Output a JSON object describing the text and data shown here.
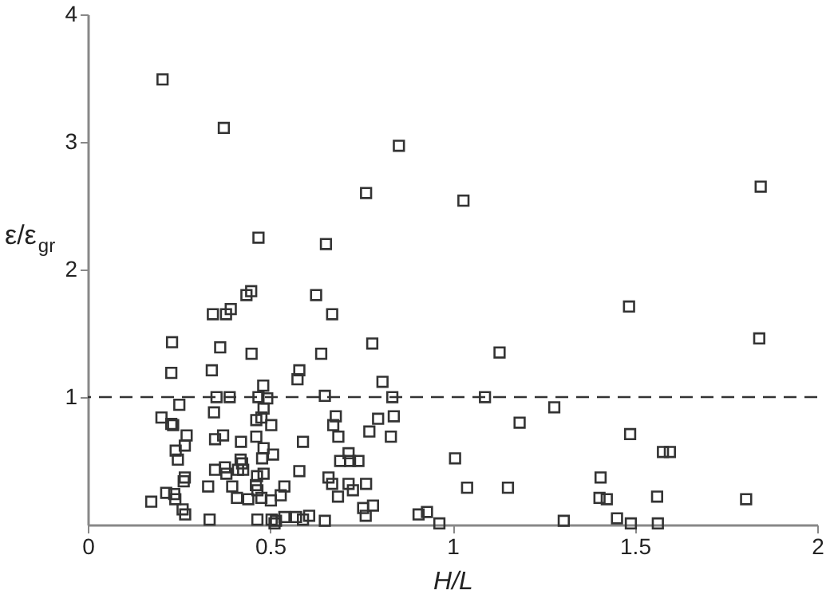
{
  "chart_data": {
    "type": "scatter",
    "xlabel": "H/L",
    "ylabel": "ε/ε$_{gr}$",
    "xlim": [
      0,
      2
    ],
    "xticks": [
      0,
      0.5,
      1,
      1.5,
      2
    ],
    "ylim": [
      0,
      4
    ],
    "yticks": [
      1,
      2,
      3,
      4
    ],
    "grid": false,
    "marker": "square",
    "ref_lines": [
      {
        "axis": "y",
        "value": 1,
        "line_style": "dashed",
        "color": "#333333"
      }
    ],
    "series": [
      {
        "color": "#333333",
        "x": [
          0.205,
          0.373,
          0.468,
          0.653,
          0.763,
          0.853,
          1.03,
          1.845,
          1.484,
          1.841,
          1.129,
          1.089,
          1.279,
          1.184,
          1.487,
          1.007,
          1.577,
          1.596,
          1.04,
          1.152,
          1.406,
          1.403,
          1.423,
          1.561,
          1.805,
          1.305,
          1.451,
          1.489,
          1.563,
          0.964,
          0.448,
          0.435,
          0.392,
          0.379,
          0.343,
          0.626,
          0.67,
          0.231,
          0.363,
          0.449,
          0.64,
          0.78,
          0.229,
          0.34,
          0.58,
          0.575,
          0.481,
          0.808,
          0.353,
          0.389,
          0.468,
          0.492,
          0.65,
          0.835,
          0.251,
          0.482,
          0.346,
          0.202,
          0.229,
          0.234,
          0.476,
          0.462,
          0.503,
          0.68,
          0.673,
          0.687,
          0.796,
          0.839,
          0.772,
          0.831,
          0.271,
          0.349,
          0.371,
          0.462,
          0.42,
          0.266,
          0.241,
          0.247,
          0.482,
          0.508,
          0.478,
          0.59,
          0.715,
          0.692,
          0.719,
          0.742,
          0.419,
          0.423,
          0.349,
          0.376,
          0.38,
          0.412,
          0.426,
          0.482,
          0.464,
          0.58,
          0.66,
          0.266,
          0.263,
          0.33,
          0.396,
          0.461,
          0.465,
          0.67,
          0.715,
          0.763,
          0.727,
          0.539,
          0.529,
          0.174,
          0.215,
          0.237,
          0.24,
          0.409,
          0.44,
          0.476,
          0.502,
          0.686,
          0.755,
          0.782,
          0.762,
          0.26,
          0.267,
          0.334,
          0.465,
          0.504,
          0.516,
          0.512,
          0.539,
          0.571,
          0.59,
          0.607,
          0.65,
          0.907,
          0.93
        ],
        "values": [
          3.49,
          3.11,
          2.25,
          2.2,
          2.6,
          2.97,
          2.54,
          2.65,
          1.71,
          1.46,
          1.35,
          1.0,
          0.92,
          0.8,
          0.71,
          0.52,
          0.57,
          0.57,
          0.29,
          0.29,
          0.37,
          0.21,
          0.2,
          0.22,
          0.2,
          0.03,
          0.05,
          0.01,
          0.01,
          0.01,
          1.83,
          1.8,
          1.69,
          1.65,
          1.65,
          1.8,
          1.65,
          1.43,
          1.39,
          1.34,
          1.34,
          1.42,
          1.19,
          1.21,
          1.21,
          1.14,
          1.09,
          1.12,
          1.0,
          1.0,
          1.0,
          0.99,
          1.01,
          1.0,
          0.94,
          0.91,
          0.88,
          0.84,
          0.79,
          0.78,
          0.84,
          0.82,
          0.78,
          0.85,
          0.78,
          0.69,
          0.83,
          0.85,
          0.73,
          0.69,
          0.7,
          0.67,
          0.7,
          0.69,
          0.65,
          0.62,
          0.58,
          0.51,
          0.6,
          0.55,
          0.52,
          0.65,
          0.56,
          0.5,
          0.5,
          0.5,
          0.51,
          0.48,
          0.43,
          0.45,
          0.4,
          0.43,
          0.43,
          0.4,
          0.38,
          0.42,
          0.37,
          0.37,
          0.34,
          0.3,
          0.3,
          0.31,
          0.27,
          0.32,
          0.32,
          0.32,
          0.27,
          0.3,
          0.23,
          0.18,
          0.25,
          0.24,
          0.2,
          0.21,
          0.2,
          0.21,
          0.19,
          0.22,
          0.13,
          0.15,
          0.07,
          0.12,
          0.08,
          0.04,
          0.04,
          0.04,
          0.03,
          0.01,
          0.06,
          0.06,
          0.04,
          0.07,
          0.03,
          0.08,
          0.1
        ]
      }
    ]
  }
}
